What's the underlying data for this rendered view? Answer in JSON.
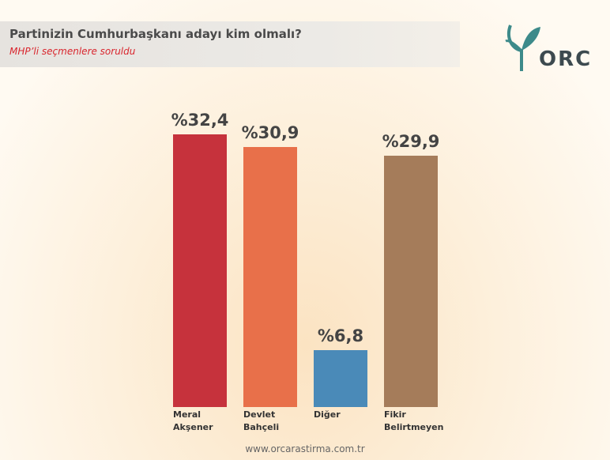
{
  "chart_data": {
    "type": "bar",
    "title": "Partinizin Cumhurbaşkanı adayı kim olmalı?",
    "subtitle": "MHP’li seçmenlere soruldu",
    "categories": [
      "Meral Akşener",
      "Devlet Bahçeli",
      "Diğer",
      "Fikir Belirtmeyen"
    ],
    "values": [
      32.4,
      30.9,
      6.8,
      29.9
    ],
    "value_labels": [
      "%32,4",
      "%30,9",
      "%6,8",
      "%29,9"
    ],
    "colors": [
      "#c6323c",
      "#e8704a",
      "#4a8ab8",
      "#a57c5a"
    ],
    "logo": "ORC",
    "website": "www.orcarastirma.com.tr"
  }
}
